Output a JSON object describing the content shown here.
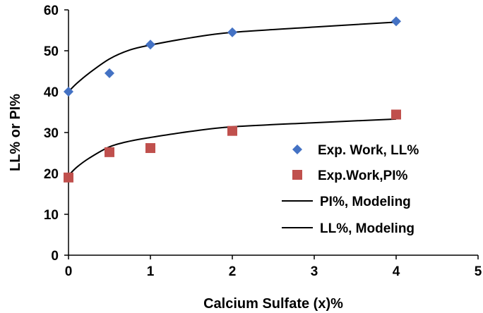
{
  "chart_data": {
    "type": "scatter",
    "title": "",
    "xlabel": "Calcium Sulfate (x)%",
    "ylabel": "LL% or PI%",
    "xlim": [
      0,
      5
    ],
    "ylim": [
      0,
      60
    ],
    "xticks": [
      "0",
      "1",
      "2",
      "3",
      "4",
      "5"
    ],
    "yticks": [
      "0",
      "10",
      "20",
      "30",
      "40",
      "50",
      "60"
    ],
    "grid": false,
    "legend_position": "right",
    "series": [
      {
        "name": "Exp. Work, LL%",
        "kind": "marker",
        "marker": "diamond",
        "color": "#4472C4",
        "x": [
          0,
          0.5,
          1,
          2,
          4
        ],
        "y": [
          40,
          44.5,
          51.5,
          54.5,
          57.2
        ]
      },
      {
        "name": "Exp.Work,PI%",
        "kind": "marker",
        "marker": "square",
        "color": "#C0504D",
        "x": [
          0,
          0.5,
          1,
          2,
          4
        ],
        "y": [
          19,
          25.2,
          26.2,
          30.4,
          34.4
        ]
      },
      {
        "name": "PI%, Modeling",
        "kind": "line",
        "color": "#000000",
        "x": [
          0,
          0.1,
          0.25,
          0.5,
          0.75,
          1,
          1.5,
          2,
          3,
          4
        ],
        "y": [
          19.5,
          21.5,
          23.7,
          26.5,
          27.9,
          28.8,
          30.3,
          31.4,
          32.4,
          33.3
        ]
      },
      {
        "name": "LL%, Modeling",
        "kind": "line",
        "color": "#000000",
        "x": [
          0,
          0.1,
          0.25,
          0.5,
          0.75,
          1,
          1.5,
          2,
          3,
          4
        ],
        "y": [
          40,
          42,
          44.5,
          48,
          50.2,
          51.4,
          53.2,
          54.5,
          55.8,
          57
        ]
      }
    ]
  }
}
